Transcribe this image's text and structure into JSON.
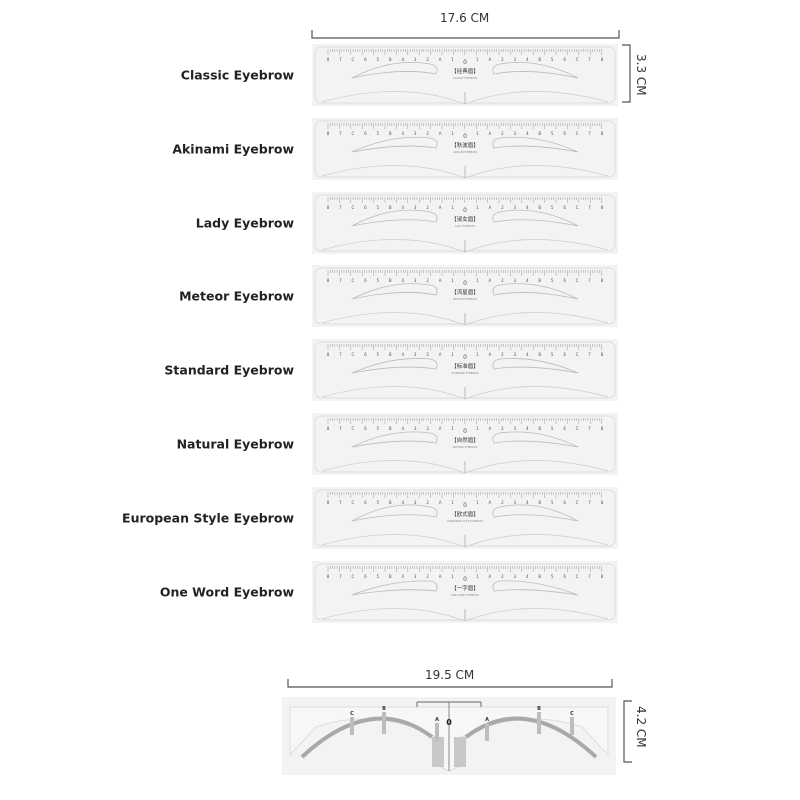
{
  "top_dimension": {
    "width_label": "17.6 CM",
    "height_label": "3.3 CM"
  },
  "bottom_dimension": {
    "width_label": "19.5 CM",
    "height_label": "4.2 CM"
  },
  "scale_marks": [
    "8",
    "7",
    "C",
    "6",
    "5",
    "B",
    "4",
    "3",
    "2",
    "A",
    "1",
    "0",
    "1",
    "A",
    "2",
    "3",
    "4",
    "B",
    "5",
    "6",
    "C",
    "7",
    "8"
  ],
  "stencils": [
    {
      "name": "Classic Eyebrow",
      "stamp": "【经典眉】",
      "sub": "CLASSIC EYEBROW"
    },
    {
      "name": "Akinami Eyebrow",
      "stamp": "【秋波眉】",
      "sub": "AKINAMI EYEBROW"
    },
    {
      "name": "Lady Eyebrow",
      "stamp": "【淑女眉】",
      "sub": "LADY EYEBROW"
    },
    {
      "name": "Meteor Eyebrow",
      "stamp": "【流星眉】",
      "sub": "METEOR EYEBROW"
    },
    {
      "name": "Standard Eyebrow",
      "stamp": "【标准眉】",
      "sub": "STANDARD EYEBROW"
    },
    {
      "name": "Natural Eyebrow",
      "stamp": "【自然眉】",
      "sub": "NATURAL EYEBROW"
    },
    {
      "name": "European Style Eyebrow",
      "stamp": "【欧式眉】",
      "sub": "EUROPEAN STYLE EYEBROW"
    },
    {
      "name": "One Word Eyebrow",
      "stamp": "【一字眉】",
      "sub": "ONE WORD EYEBROW"
    }
  ],
  "bottom_ruler": {
    "center_mark": "0",
    "marks": [
      "A",
      "B",
      "C"
    ]
  },
  "colors": {
    "ruler_fill": "#f3f3f3",
    "ruler_edge": "#dddddd",
    "mark": "#999999",
    "arc": "#a9a9a9"
  }
}
